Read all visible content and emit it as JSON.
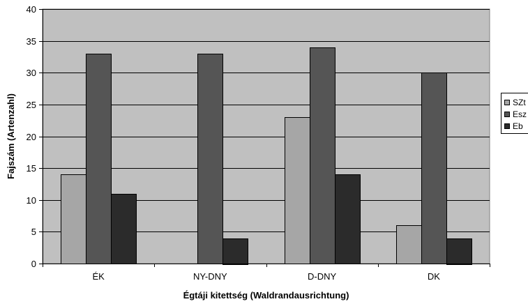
{
  "chart_data": {
    "type": "bar",
    "title": "",
    "xlabel": "Égtáji kitettség (Waldrandausrichtung)",
    "ylabel": "Fajszám (Artenzahl)",
    "categories": [
      "ÉK",
      "NY-DNY",
      "D-DNY",
      "DK"
    ],
    "series": [
      {
        "name": "SZt",
        "values": [
          14,
          0,
          23,
          6
        ],
        "color": "#a6a6a6"
      },
      {
        "name": "Esz",
        "values": [
          33,
          33,
          34,
          30
        ],
        "color": "#555555"
      },
      {
        "name": "Eb",
        "values": [
          11,
          4,
          14,
          4
        ],
        "color": "#2b2b2b"
      }
    ],
    "ylim": [
      0,
      40
    ],
    "yticks": [
      "0",
      "5",
      "10",
      "15",
      "20",
      "25",
      "30",
      "35",
      "40"
    ],
    "grid": true,
    "legend": "right",
    "plot_background": "#c0c0c0",
    "gridline_color": "#000000"
  }
}
